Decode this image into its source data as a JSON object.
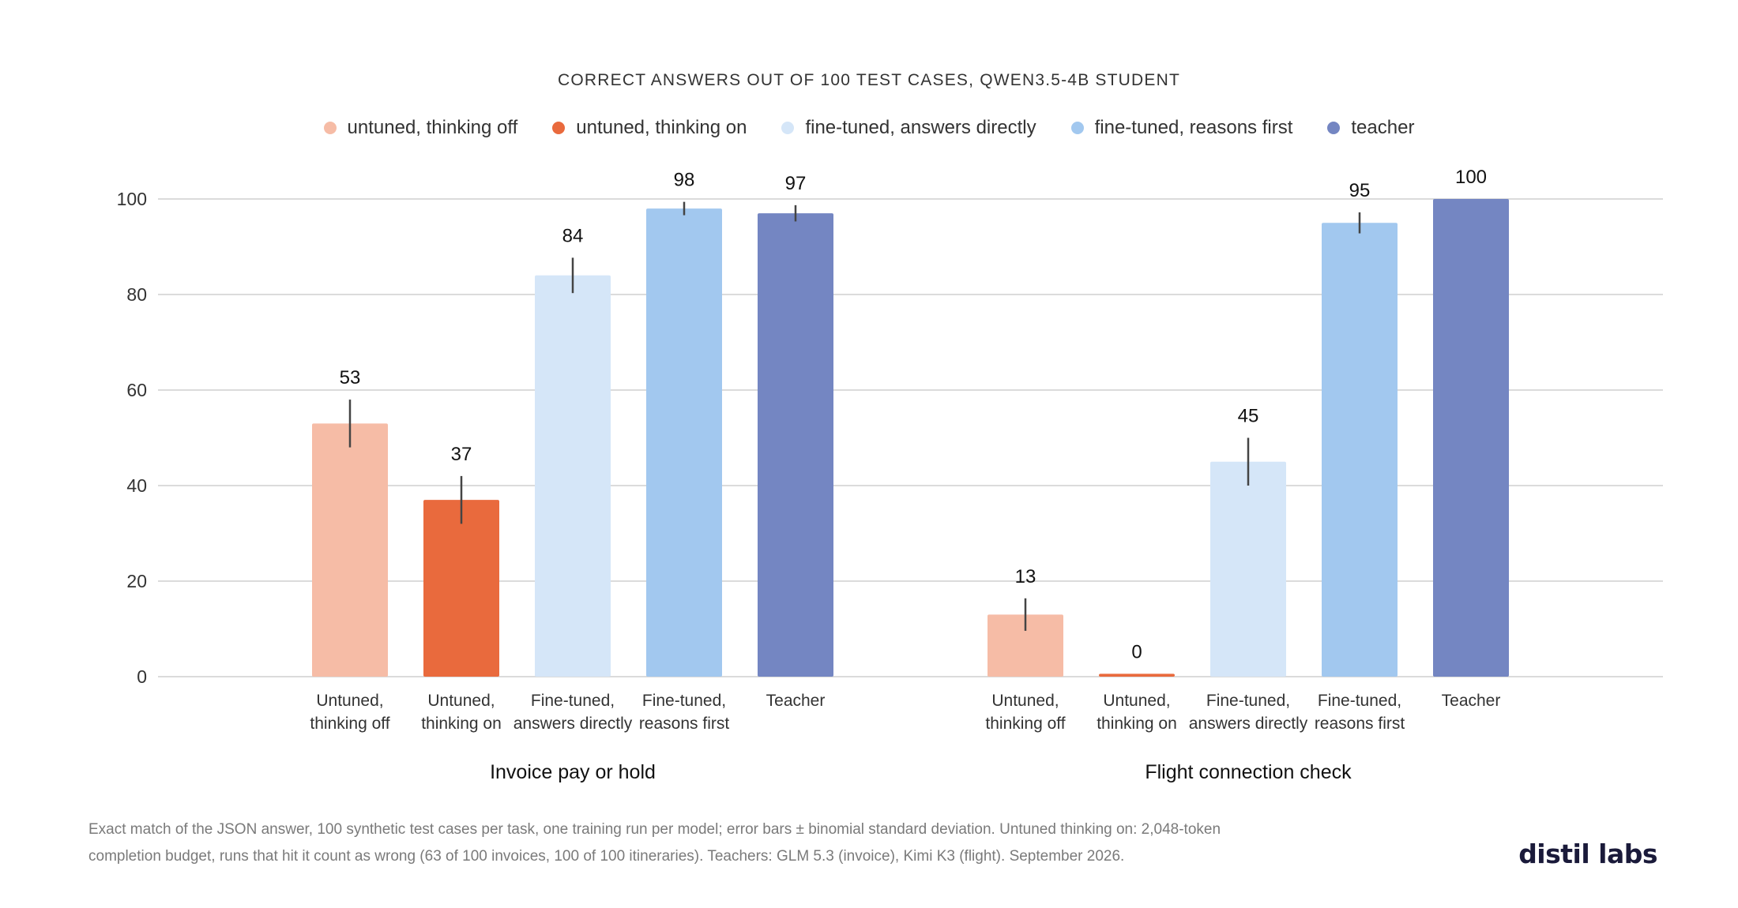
{
  "chart_data": {
    "type": "bar",
    "title": "CORRECT ANSWERS OUT OF 100 TEST CASES, QWEN3.5-4B STUDENT",
    "ylim": [
      0,
      100
    ],
    "yticks": [
      0,
      20,
      40,
      60,
      80,
      100
    ],
    "grid": true,
    "legend_position": "top-center",
    "legend": [
      {
        "name": "untuned, thinking off",
        "color": "#f6bca6"
      },
      {
        "name": "untuned, thinking on",
        "color": "#e96a3d"
      },
      {
        "name": "fine-tuned, answers directly",
        "color": "#d5e6f8"
      },
      {
        "name": "fine-tuned, reasons first",
        "color": "#a2c8ef"
      },
      {
        "name": "teacher",
        "color": "#7486c2"
      }
    ],
    "groups": [
      {
        "name": "Invoice pay or hold",
        "bars": [
          {
            "label": [
              "Untuned,",
              "thinking off"
            ],
            "value": 53,
            "err": 5,
            "color": "#f6bca6",
            "value_label": "53"
          },
          {
            "label": [
              "Untuned,",
              "thinking on"
            ],
            "value": 37,
            "err": 5,
            "color": "#e96a3d",
            "value_label": "37"
          },
          {
            "label": [
              "Fine-tuned,",
              "answers directly"
            ],
            "value": 84,
            "err": 3.7,
            "color": "#d5e6f8",
            "value_label": "84"
          },
          {
            "label": [
              "Fine-tuned,",
              "reasons first"
            ],
            "value": 98,
            "err": 1.4,
            "color": "#a2c8ef",
            "value_label": "98"
          },
          {
            "label": [
              "Teacher"
            ],
            "value": 97,
            "err": 1.7,
            "color": "#7486c2",
            "value_label": "97"
          }
        ]
      },
      {
        "name": "Flight connection check",
        "bars": [
          {
            "label": [
              "Untuned,",
              "thinking off"
            ],
            "value": 13,
            "err": 3.4,
            "color": "#f6bca6",
            "value_label": "13"
          },
          {
            "label": [
              "Untuned,",
              "thinking on"
            ],
            "value": 0.6,
            "err": 0,
            "color": "#e96a3d",
            "value_label": "0"
          },
          {
            "label": [
              "Fine-tuned,",
              "answers directly"
            ],
            "value": 45,
            "err": 5,
            "color": "#d5e6f8",
            "value_label": "45"
          },
          {
            "label": [
              "Fine-tuned,",
              "reasons first"
            ],
            "value": 95,
            "err": 2.2,
            "color": "#a2c8ef",
            "value_label": "95"
          },
          {
            "label": [
              "Teacher"
            ],
            "value": 100,
            "err": 0,
            "color": "#7486c2",
            "value_label": "100"
          }
        ]
      }
    ]
  },
  "footnote": {
    "line1": "Exact match of the JSON answer, 100 synthetic test cases per task, one training run per model; error bars ± binomial standard deviation. Untuned thinking on: 2,048-token",
    "line2": "completion budget, runs that hit it count as wrong (63 of 100 invoices, 100 of 100 itineraries). Teachers: GLM 5.3 (invoice), Kimi K3 (flight). September 2026."
  },
  "brand": "distil labs"
}
